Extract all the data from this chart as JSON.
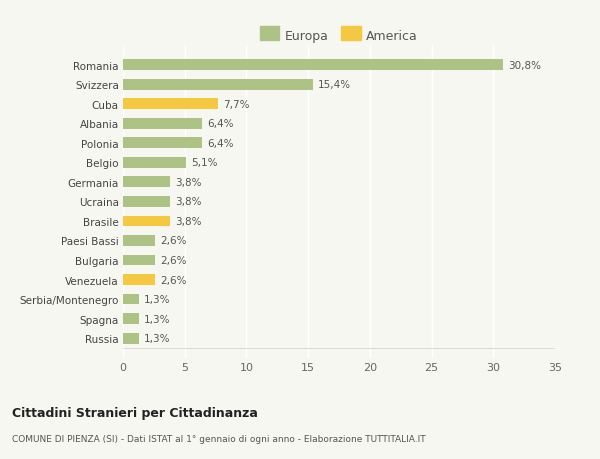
{
  "categories": [
    "Russia",
    "Spagna",
    "Serbia/Montenegro",
    "Venezuela",
    "Bulgaria",
    "Paesi Bassi",
    "Brasile",
    "Ucraina",
    "Germania",
    "Belgio",
    "Polonia",
    "Albania",
    "Cuba",
    "Svizzera",
    "Romania"
  ],
  "values": [
    1.3,
    1.3,
    1.3,
    2.6,
    2.6,
    2.6,
    3.8,
    3.8,
    3.8,
    5.1,
    6.4,
    6.4,
    7.7,
    15.4,
    30.8
  ],
  "labels": [
    "1,3%",
    "1,3%",
    "1,3%",
    "2,6%",
    "2,6%",
    "2,6%",
    "3,8%",
    "3,8%",
    "3,8%",
    "5,1%",
    "6,4%",
    "6,4%",
    "7,7%",
    "15,4%",
    "30,8%"
  ],
  "colors": [
    "#adc285",
    "#adc285",
    "#adc285",
    "#f5c842",
    "#adc285",
    "#adc285",
    "#f5c842",
    "#adc285",
    "#adc285",
    "#adc285",
    "#adc285",
    "#adc285",
    "#f5c842",
    "#adc285",
    "#adc285"
  ],
  "europa_color": "#adc285",
  "america_color": "#f5c842",
  "bg_color": "#f7f7f2",
  "xlim": [
    0,
    35
  ],
  "xticks": [
    0,
    5,
    10,
    15,
    20,
    25,
    30,
    35
  ],
  "title1": "Cittadini Stranieri per Cittadinanza",
  "title2": "COMUNE DI PIENZA (SI) - Dati ISTAT al 1° gennaio di ogni anno - Elaborazione TUTTITALIA.IT",
  "legend_europa": "Europa",
  "legend_america": "America",
  "bar_height": 0.55
}
